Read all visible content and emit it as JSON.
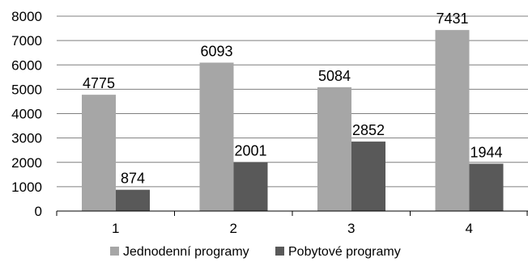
{
  "chart_data": {
    "type": "bar",
    "title": "",
    "xlabel": "",
    "ylabel": "",
    "categories": [
      "1",
      "2",
      "3",
      "4"
    ],
    "series": [
      {
        "name": "Jednodenní programy",
        "values": [
          4775,
          6093,
          5084,
          7431
        ],
        "color": "#a6a6a6"
      },
      {
        "name": "Pobytové programy",
        "values": [
          874,
          2001,
          2852,
          1944
        ],
        "color": "#595959"
      }
    ],
    "ylim": [
      0,
      8000
    ],
    "yticks": [
      0,
      1000,
      2000,
      3000,
      4000,
      5000,
      6000,
      7000,
      8000
    ],
    "grid": true,
    "legend": "bottom",
    "data_labels": true
  }
}
